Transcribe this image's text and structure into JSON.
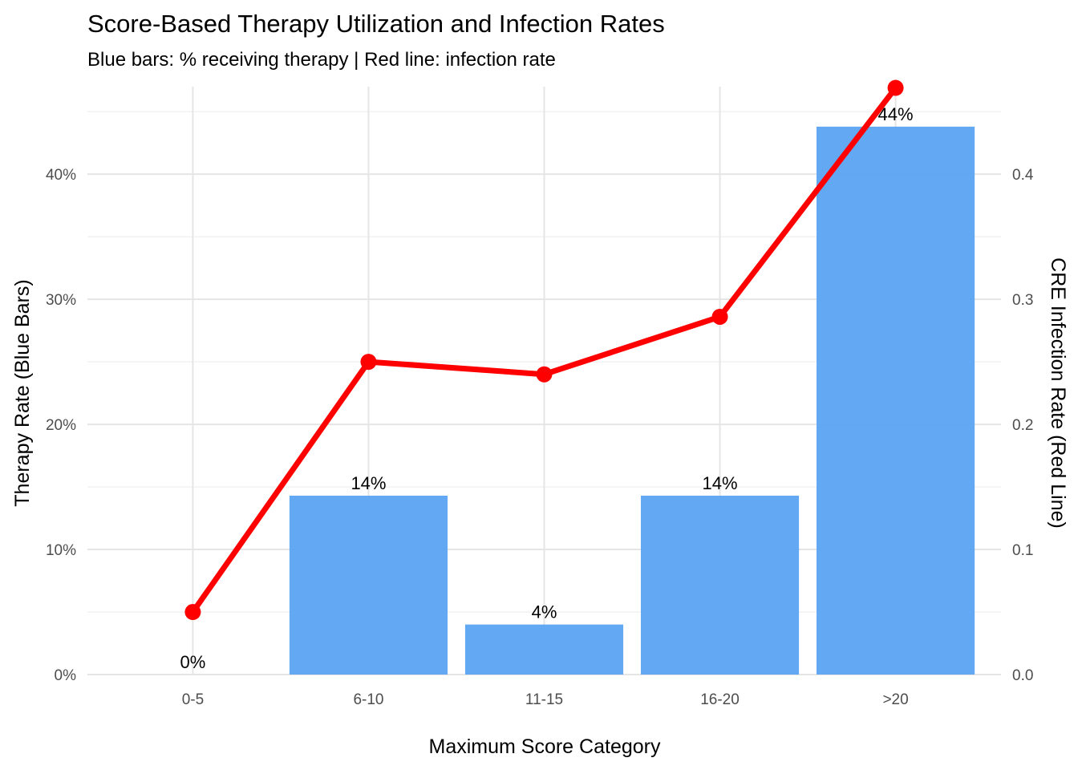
{
  "chart_data": {
    "type": "bar",
    "title": "Score-Based Therapy Utilization and Infection Rates",
    "subtitle": "Blue bars: % receiving therapy | Red line: infection rate",
    "xlabel": "Maximum Score Category",
    "ylabel": "Therapy Rate (Blue Bars)",
    "y2label": "CRE Infection Rate (Red Line)",
    "categories": [
      "0-5",
      "6-10",
      "11-15",
      "16-20",
      ">20"
    ],
    "ylim": [
      0,
      0.47
    ],
    "y_ticks": [
      0,
      0.1,
      0.2,
      0.3,
      0.4
    ],
    "y_tick_labels": [
      "0%",
      "10%",
      "20%",
      "30%",
      "40%"
    ],
    "y2lim": [
      0,
      0.47
    ],
    "y2_ticks": [
      0,
      0.1,
      0.2,
      0.3,
      0.4
    ],
    "y2_tick_labels": [
      "0.0",
      "0.1",
      "0.2",
      "0.3",
      "0.4"
    ],
    "grid": true,
    "legend": "none",
    "series": [
      {
        "type": "bar",
        "values": [
          0,
          0.143,
          0.04,
          0.143,
          0.438
        ],
        "labels": [
          "0%",
          "14%",
          "4%",
          "14%",
          "44%"
        ],
        "color": "#5BA3F1"
      },
      {
        "type": "line",
        "axis": "secondary",
        "values": [
          0.05,
          0.25,
          0.24,
          0.286,
          0.469
        ],
        "color": "#FF0000"
      }
    ]
  }
}
